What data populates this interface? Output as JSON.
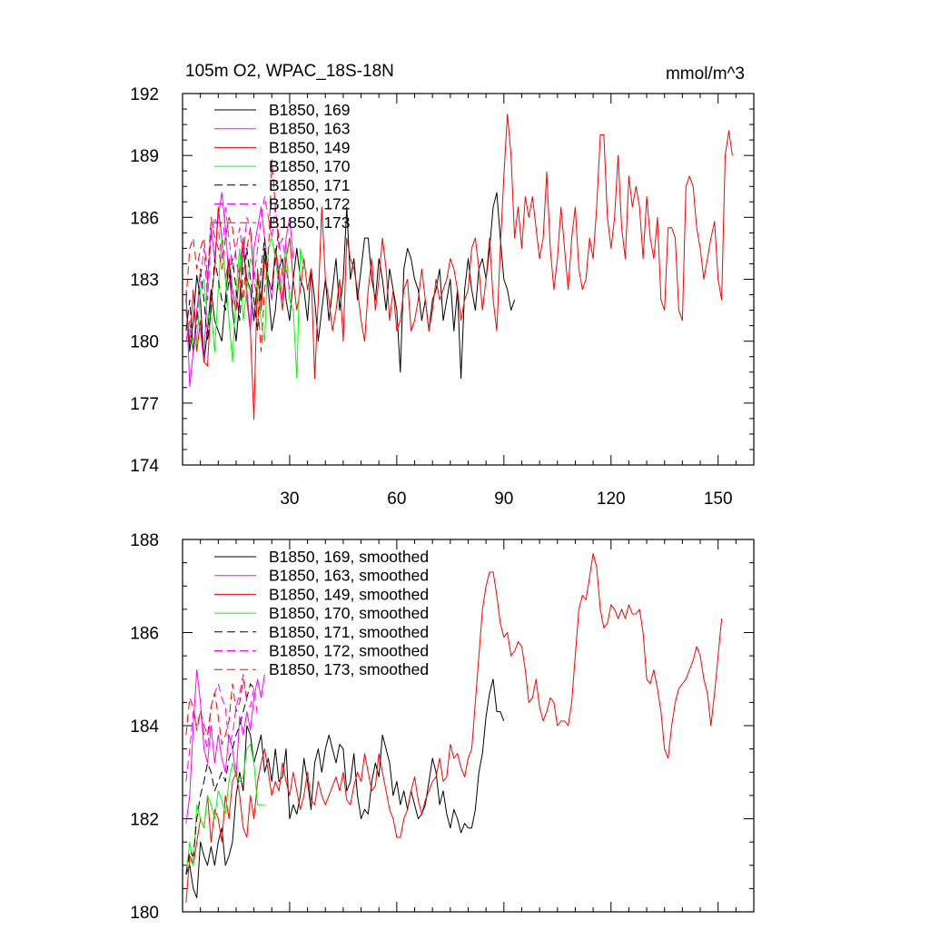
{
  "figure": {
    "title": "105m O2, WPAC_18S-18N",
    "units": "mmol/m^3"
  },
  "chart_data": [
    {
      "type": "line",
      "title": "105m O2, WPAC_18S-18N",
      "units_label": "mmol/m^3",
      "xlabel": "",
      "ylabel": "",
      "xlim": [
        0,
        160
      ],
      "ylim": [
        174,
        192
      ],
      "x_ticks": [
        30,
        60,
        90,
        120,
        150
      ],
      "x_tick_labels": [
        "30",
        "60",
        "90",
        "120",
        "150"
      ],
      "y_ticks": [
        174,
        177,
        180,
        183,
        186,
        189,
        192
      ],
      "y_tick_labels": [
        "174",
        "177",
        "180",
        "183",
        "186",
        "189",
        "192"
      ],
      "legend_position": "top-left",
      "series": [
        {
          "name": "B1850, 169",
          "color": "#000000",
          "dash": "solid",
          "values": [
            182.0,
            179.5,
            181.0,
            183.2,
            182.0,
            179.0,
            180.5,
            182.5,
            181.0,
            180.5,
            180.0,
            182.0,
            184.0,
            181.5,
            180.0,
            182.0,
            184.5,
            183.0,
            182.5,
            181.0,
            183.0,
            182.0,
            184.5,
            182.5,
            180.5,
            181.5,
            183.5,
            184.0,
            182.0,
            181.0,
            183.0,
            184.5,
            183.0,
            182.5,
            181.0,
            183.5,
            182.0,
            180.0,
            181.5,
            183.0,
            181.0,
            182.5,
            184.0,
            181.5,
            183.0,
            186.5,
            183.0,
            184.0,
            182.0,
            183.5,
            185.0,
            185.0,
            183.0,
            182.0,
            184.0,
            183.0,
            181.5,
            183.5,
            182.5,
            181.5,
            178.5,
            183.5,
            184.5,
            184.0,
            183.0,
            182.5,
            181.0,
            182.0,
            180.5,
            182.0,
            182.5,
            183.5,
            181.0,
            182.0,
            183.0,
            180.5,
            182.5,
            178.2,
            182.5,
            184.0,
            182.5,
            181.5,
            183.5,
            184.0,
            183.0,
            184.5,
            186.5,
            187.2,
            185.0,
            183.0,
            182.5,
            181.5,
            182.0
          ]
        },
        {
          "name": "B1850, 163",
          "color": "#ff00ff",
          "dash": "solid",
          "values": [
            182.5,
            177.8,
            179.5,
            181.5,
            180.5,
            179.0,
            183.0,
            185.5,
            184.0,
            186.0,
            187.2,
            185.5,
            183.0,
            182.0,
            181.5,
            183.5,
            185.0,
            182.5,
            180.5,
            184.5,
            185.5,
            186.5,
            185.0,
            183.0,
            182.0,
            184.5,
            183.5,
            182.0,
            185.0,
            186.0,
            184.0
          ]
        },
        {
          "name": "B1850, 149",
          "color": "#ff0000",
          "dash": "solid",
          "values": [
            181.5,
            180.0,
            182.5,
            179.5,
            181.0,
            179.0,
            178.8,
            182.0,
            183.5,
            186.5,
            185.0,
            183.0,
            184.0,
            182.5,
            181.5,
            183.5,
            185.0,
            182.0,
            180.5,
            176.2,
            183.5,
            181.5,
            184.0,
            183.0,
            182.5,
            184.5,
            183.0,
            181.5,
            184.0,
            185.0,
            183.0,
            181.5,
            182.5,
            184.0,
            182.5,
            183.5,
            178.2,
            182.0,
            186.5,
            183.0,
            182.0,
            180.5,
            181.5,
            183.0,
            180.0,
            185.0,
            184.0,
            183.5,
            182.5,
            181.0,
            180.0,
            182.5,
            184.0,
            181.5,
            183.0,
            185.0,
            183.5,
            181.0,
            182.5,
            180.5,
            181.0,
            182.5,
            183.0,
            180.5,
            181.0,
            182.0,
            183.5,
            182.0,
            180.5,
            181.5,
            183.0,
            182.0,
            182.5,
            183.0,
            184.0,
            183.5,
            182.5,
            181.0,
            182.0,
            182.5,
            184.5,
            185.0,
            183.5,
            181.5,
            183.0,
            185.0,
            182.0,
            180.5,
            184.5,
            188.0,
            191.0,
            189.0,
            185.0,
            186.5,
            184.5,
            187.0,
            186.0,
            187.0,
            185.5,
            184.0,
            185.0,
            188.2,
            184.5,
            182.5,
            184.0,
            186.5,
            184.5,
            182.5,
            185.0,
            186.5,
            183.5,
            182.5,
            183.0,
            185.0,
            184.0,
            186.5,
            190.0,
            190.0,
            186.0,
            184.5,
            186.0,
            189.0,
            185.5,
            184.0,
            188.0,
            186.5,
            187.5,
            186.5,
            184.0,
            187.0,
            185.0,
            184.0,
            186.0,
            182.0,
            181.5,
            185.5,
            185.5,
            185.0,
            181.5,
            181.0,
            187.5,
            188.0,
            187.5,
            185.5,
            184.5,
            183.0,
            184.0,
            185.0,
            185.8,
            183.0,
            182.0,
            189.0,
            190.2,
            189.0
          ]
        },
        {
          "name": "B1850, 170",
          "color": "#00ff00",
          "dash": "solid",
          "values": [
            181.0,
            180.5,
            179.5,
            180.0,
            182.5,
            183.0,
            181.0,
            181.5,
            179.5,
            182.5,
            185.0,
            183.0,
            181.0,
            179.0,
            182.5,
            184.5,
            181.0,
            182.5,
            184.0,
            183.5,
            182.5,
            181.0,
            180.0,
            184.5,
            185.0,
            184.0,
            182.5,
            183.0,
            184.5,
            182.0,
            181.5,
            178.2,
            184.5,
            183.5
          ]
        },
        {
          "name": "B1850, 171",
          "color": "#000000",
          "dash": "dash",
          "values": [
            180.5,
            182.0,
            179.5,
            181.0,
            183.5,
            182.0,
            180.0,
            181.5,
            184.0,
            183.0,
            182.0,
            181.5,
            183.0,
            184.0,
            182.5,
            181.0,
            183.5,
            184.5,
            183.0,
            182.0,
            180.5,
            183.5,
            185.0,
            183.0,
            182.5,
            184.0,
            185.5
          ]
        },
        {
          "name": "B1850, 172",
          "color": "#ff00ff",
          "dash": "dash",
          "values": [
            180.0,
            181.0,
            179.5,
            181.5,
            183.0,
            184.5,
            182.0,
            185.0,
            186.0,
            185.5,
            184.0,
            186.5,
            185.0,
            183.5,
            184.5,
            185.5,
            184.0,
            186.0,
            185.5,
            183.0,
            184.5,
            186.0,
            187.0,
            186.0,
            185.0,
            186.5,
            184.5,
            185.0,
            183.5,
            182.5
          ]
        },
        {
          "name": "B1850, 173",
          "color": "#ff0000",
          "dash": "dash",
          "values": [
            182.0,
            184.5,
            185.0,
            183.5,
            184.5,
            185.0,
            183.0,
            186.0,
            185.0,
            184.5,
            183.5,
            185.0,
            186.0,
            185.5,
            184.0,
            183.0,
            182.0,
            184.5,
            185.5,
            183.0,
            182.0,
            179.5,
            182.5,
            184.0,
            188.8,
            186.5,
            185.0,
            183.0
          ]
        }
      ]
    },
    {
      "type": "line",
      "title": "",
      "xlabel": "",
      "ylabel": "",
      "xlim": [
        0,
        160
      ],
      "ylim": [
        180,
        188
      ],
      "x_ticks": [
        30,
        60,
        90,
        120,
        150
      ],
      "y_ticks": [
        180,
        182,
        184,
        186,
        188
      ],
      "y_tick_labels": [
        "180",
        "182",
        "184",
        "186",
        "188"
      ],
      "legend_position": "top-left",
      "series": [
        {
          "name": "B1850, 169, smoothed",
          "color": "#000000",
          "dash": "solid",
          "values": [
            180.8,
            181.0,
            180.5,
            180.3,
            181.5,
            181.2,
            181.0,
            181.4,
            181.0,
            181.5,
            181.8,
            181.0,
            181.2,
            181.5,
            182.5,
            183.0,
            182.6,
            184.0,
            183.8,
            183.2,
            183.5,
            183.8,
            183.0,
            183.3,
            182.8,
            183.5,
            182.8,
            182.9,
            183.5,
            182.0,
            182.3,
            182.1,
            182.5,
            183.3,
            182.8,
            182.2,
            183.2,
            183.5,
            183.0,
            183.5,
            183.8,
            183.5,
            183.2,
            183.6,
            183.5,
            182.6,
            182.8,
            183.4,
            182.5,
            182.0,
            182.2,
            182.1,
            182.8,
            183.2,
            182.9,
            183.8,
            183.5,
            183.2,
            182.5,
            182.8,
            182.3,
            182.6,
            182.2,
            182.6,
            182.3,
            182.0,
            182.1,
            182.3,
            182.8,
            183.3,
            183.0,
            182.3,
            182.6,
            182.1,
            181.8,
            182.2,
            182.0,
            181.7,
            181.9,
            181.8,
            181.8,
            182.2,
            183.0,
            183.4,
            184.2,
            184.7,
            185.0,
            184.3,
            184.3,
            184.1
          ]
        },
        {
          "name": "B1850, 163, smoothed",
          "color": "#ff00ff",
          "dash": "solid",
          "values": [
            181.9,
            182.5,
            184.0,
            185.2,
            184.5,
            183.5,
            183.2,
            184.0,
            183.2,
            183.8,
            183.3,
            183.0,
            183.8,
            183.5,
            182.9,
            184.2,
            183.8,
            184.3,
            183.9,
            184.6,
            185.0,
            184.6,
            185.1
          ]
        },
        {
          "name": "B1850, 149, smoothed",
          "color": "#ff0000",
          "dash": "solid",
          "values": [
            180.2,
            181.2,
            181.0,
            181.5,
            182.0,
            181.8,
            182.5,
            181.5,
            182.2,
            182.0,
            181.5,
            182.5,
            182.0,
            182.8,
            183.0,
            182.5,
            181.8,
            181.6,
            182.5,
            182.0,
            182.8,
            183.2,
            183.5,
            183.0,
            182.5,
            182.8,
            182.6,
            183.2,
            182.8,
            182.5,
            183.0,
            182.6,
            182.2,
            182.5,
            183.0,
            182.4,
            182.3,
            182.8,
            182.5,
            182.3,
            182.5,
            182.7,
            182.9,
            182.6,
            183.0,
            182.4,
            182.3,
            182.7,
            183.0,
            182.8,
            183.4,
            183.0,
            182.6,
            182.7,
            183.4,
            183.0,
            182.6,
            182.2,
            182.0,
            181.6,
            181.6,
            182.0,
            182.2,
            182.6,
            182.9,
            182.4,
            182.1,
            182.4,
            182.6,
            182.8,
            182.9,
            183.3,
            182.8,
            182.9,
            183.6,
            183.3,
            183.4,
            183.1,
            182.9,
            183.3,
            183.5,
            184.5,
            185.5,
            186.5,
            187.0,
            187.3,
            187.3,
            186.8,
            186.2,
            185.9,
            186.0,
            185.5,
            185.6,
            185.8,
            185.7,
            185.2,
            184.5,
            184.6,
            185.0,
            184.4,
            184.1,
            184.3,
            184.6,
            184.5,
            184.0,
            184.1,
            184.1,
            184.0,
            184.5,
            185.5,
            186.5,
            186.8,
            186.7,
            187.2,
            187.7,
            187.4,
            186.5,
            186.1,
            186.2,
            186.6,
            186.5,
            186.3,
            186.5,
            186.3,
            186.6,
            186.4,
            186.4,
            186.5,
            186.0,
            185.0,
            184.9,
            185.2,
            184.8,
            184.3,
            183.5,
            183.3,
            184.0,
            184.5,
            184.8,
            184.9,
            185.0,
            185.2,
            185.4,
            185.7,
            185.5,
            185.0,
            184.7,
            184.0,
            184.7,
            185.5,
            186.3
          ]
        },
        {
          "name": "B1850, 170, smoothed",
          "color": "#00ff00",
          "dash": "solid",
          "values": [
            180.8,
            181.5,
            181.0,
            182.3,
            182.0,
            181.8,
            182.5,
            182.3,
            182.0,
            182.6,
            182.4,
            182.1,
            182.8,
            183.2,
            182.9,
            182.8,
            182.9,
            183.5,
            183.6,
            183.2,
            182.3,
            182.3,
            182.3
          ]
        },
        {
          "name": "B1850, 171, smoothed",
          "color": "#000000",
          "dash": "dash",
          "values": [
            180.8,
            181.3,
            181.2,
            182.0,
            182.5,
            182.8,
            183.2,
            183.0,
            182.6,
            182.8,
            183.0,
            182.8,
            183.3,
            183.5,
            183.8,
            184.0,
            184.3,
            184.6,
            184.9,
            184.8
          ]
        },
        {
          "name": "B1850, 172, smoothed",
          "color": "#ff00ff",
          "dash": "dash",
          "values": [
            182.8,
            183.5,
            184.3,
            184.0,
            184.3,
            183.8,
            183.5,
            184.4,
            184.7,
            184.9,
            184.6,
            184.4,
            183.6,
            183.8,
            184.4,
            184.7,
            185.1,
            184.5,
            184.4,
            184.8,
            184.2
          ]
        },
        {
          "name": "B1850, 173, smoothed",
          "color": "#ff0000",
          "dash": "dash",
          "values": [
            183.8,
            184.6,
            184.4,
            183.9,
            184.3,
            184.0,
            183.8,
            184.4,
            184.7,
            184.2,
            183.6,
            183.8,
            184.1,
            184.9,
            184.3,
            184.5,
            185.0,
            184.6
          ]
        }
      ]
    }
  ]
}
